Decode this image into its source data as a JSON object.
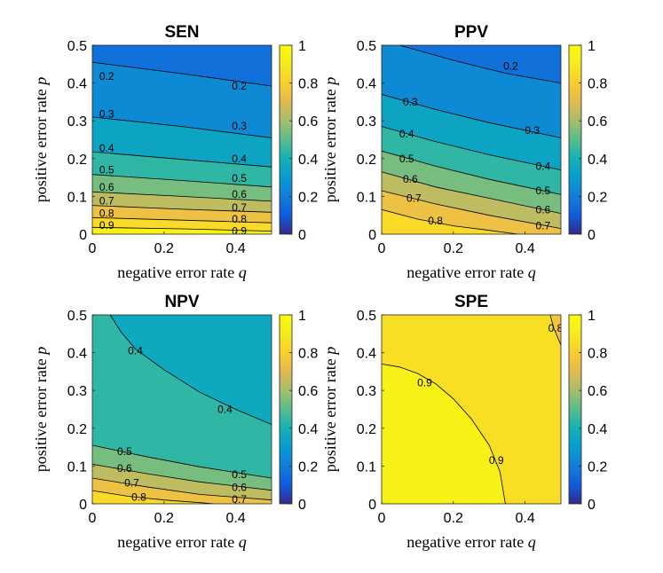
{
  "chart_data": [
    {
      "type": "heatmap",
      "subtype": "filled-contour",
      "title": "SEN",
      "xlabel": "negative error rate",
      "xlabel_var": "q",
      "ylabel": "positive error rate",
      "ylabel_var": "p",
      "xlim": [
        0,
        0.5
      ],
      "ylim": [
        0,
        0.5
      ],
      "xticks": [
        "0",
        "0.2",
        "0.4"
      ],
      "yticks": [
        "0",
        "0.1",
        "0.2",
        "0.3",
        "0.4",
        "0.5"
      ],
      "clim": [
        0,
        1
      ],
      "colorbar_ticks": [
        "0",
        "0.2",
        "0.4",
        "0.6",
        "0.8",
        "1"
      ],
      "contour_levels": [
        {
          "level": 0.9,
          "line": [
            [
              0,
              0.018
            ],
            [
              0.25,
              0.014
            ],
            [
              0.5,
              0.008
            ]
          ],
          "labels": [
            {
              "text": "0.9",
              "x": 0.04,
              "y": 0.023
            },
            {
              "text": "0.9",
              "x": 0.41,
              "y": 0.008
            }
          ]
        },
        {
          "level": 0.8,
          "line": [
            [
              0,
              0.044
            ],
            [
              0.25,
              0.037
            ],
            [
              0.5,
              0.03
            ]
          ],
          "labels": [
            {
              "text": "0.8",
              "x": 0.04,
              "y": 0.055
            },
            {
              "text": "0.8",
              "x": 0.41,
              "y": 0.04
            }
          ]
        },
        {
          "level": 0.7,
          "line": [
            [
              0,
              0.076
            ],
            [
              0.25,
              0.066
            ],
            [
              0.5,
              0.058
            ]
          ],
          "labels": [
            {
              "text": "0.7",
              "x": 0.04,
              "y": 0.088
            },
            {
              "text": "0.7",
              "x": 0.41,
              "y": 0.07
            }
          ]
        },
        {
          "level": 0.6,
          "line": [
            [
              0,
              0.112
            ],
            [
              0.25,
              0.1
            ],
            [
              0.5,
              0.087
            ]
          ],
          "labels": [
            {
              "text": "0.6",
              "x": 0.04,
              "y": 0.125
            },
            {
              "text": "0.6",
              "x": 0.41,
              "y": 0.106
            }
          ]
        },
        {
          "level": 0.5,
          "line": [
            [
              0,
              0.158
            ],
            [
              0.25,
              0.142
            ],
            [
              0.5,
              0.125
            ]
          ],
          "labels": [
            {
              "text": "0.5",
              "x": 0.04,
              "y": 0.17
            },
            {
              "text": "0.5",
              "x": 0.41,
              "y": 0.148
            }
          ]
        },
        {
          "level": 0.4,
          "line": [
            [
              0,
              0.218
            ],
            [
              0.25,
              0.198
            ],
            [
              0.5,
              0.178
            ]
          ],
          "labels": [
            {
              "text": "0.4",
              "x": 0.04,
              "y": 0.228
            },
            {
              "text": "0.4",
              "x": 0.41,
              "y": 0.2
            }
          ]
        },
        {
          "level": 0.3,
          "line": [
            [
              0,
              0.31
            ],
            [
              0.25,
              0.285
            ],
            [
              0.5,
              0.255
            ]
          ],
          "labels": [
            {
              "text": "0.3",
              "x": 0.04,
              "y": 0.318
            },
            {
              "text": "0.3",
              "x": 0.41,
              "y": 0.286
            }
          ]
        },
        {
          "level": 0.2,
          "line": [
            [
              0,
              0.455
            ],
            [
              0.25,
              0.425
            ],
            [
              0.5,
              0.392
            ]
          ],
          "labels": [
            {
              "text": "0.2",
              "x": 0.04,
              "y": 0.418
            },
            {
              "text": "0.2",
              "x": 0.41,
              "y": 0.392
            }
          ]
        }
      ]
    },
    {
      "type": "heatmap",
      "subtype": "filled-contour",
      "title": "PPV",
      "xlabel": "negative error rate",
      "xlabel_var": "q",
      "ylabel": "positive error rate",
      "ylabel_var": "p",
      "xlim": [
        0,
        0.5
      ],
      "ylim": [
        0,
        0.5
      ],
      "xticks": [
        "0",
        "0.2",
        "0.4"
      ],
      "yticks": [
        "0",
        "0.1",
        "0.2",
        "0.3",
        "0.4",
        "0.5"
      ],
      "clim": [
        0,
        1
      ],
      "colorbar_ticks": [
        "0",
        "0.2",
        "0.4",
        "0.6",
        "0.8",
        "1"
      ],
      "contour_levels": [
        {
          "level": 0.8,
          "line": [
            [
              0,
              0.065
            ],
            [
              0.1,
              0.04
            ],
            [
              0.2,
              0.022
            ],
            [
              0.3,
              0.01
            ],
            [
              0.38,
              0.0
            ]
          ],
          "labels": [
            {
              "text": "0.8",
              "x": 0.15,
              "y": 0.035
            }
          ]
        },
        {
          "level": 0.7,
          "line": [
            [
              0,
              0.115
            ],
            [
              0.15,
              0.08
            ],
            [
              0.3,
              0.05
            ],
            [
              0.5,
              0.015
            ]
          ],
          "labels": [
            {
              "text": "0.7",
              "x": 0.09,
              "y": 0.095
            },
            {
              "text": "0.7",
              "x": 0.45,
              "y": 0.022
            }
          ]
        },
        {
          "level": 0.6,
          "line": [
            [
              0,
              0.165
            ],
            [
              0.15,
              0.125
            ],
            [
              0.3,
              0.095
            ],
            [
              0.5,
              0.055
            ]
          ],
          "labels": [
            {
              "text": "0.6",
              "x": 0.08,
              "y": 0.145
            },
            {
              "text": "0.6",
              "x": 0.45,
              "y": 0.065
            }
          ]
        },
        {
          "level": 0.5,
          "line": [
            [
              0,
              0.22
            ],
            [
              0.15,
              0.18
            ],
            [
              0.3,
              0.145
            ],
            [
              0.5,
              0.105
            ]
          ],
          "labels": [
            {
              "text": "0.5",
              "x": 0.07,
              "y": 0.2
            },
            {
              "text": "0.5",
              "x": 0.45,
              "y": 0.115
            }
          ]
        },
        {
          "level": 0.4,
          "line": [
            [
              0,
              0.285
            ],
            [
              0.15,
              0.245
            ],
            [
              0.3,
              0.21
            ],
            [
              0.5,
              0.17
            ]
          ],
          "labels": [
            {
              "text": "0.4",
              "x": 0.07,
              "y": 0.265
            },
            {
              "text": "0.4",
              "x": 0.45,
              "y": 0.18
            }
          ]
        },
        {
          "level": 0.3,
          "line": [
            [
              0,
              0.37
            ],
            [
              0.15,
              0.33
            ],
            [
              0.3,
              0.295
            ],
            [
              0.5,
              0.255
            ]
          ],
          "labels": [
            {
              "text": "0.3",
              "x": 0.08,
              "y": 0.35
            },
            {
              "text": "0.3",
              "x": 0.42,
              "y": 0.275
            }
          ]
        },
        {
          "level": 0.2,
          "line": [
            [
              0.05,
              0.5
            ],
            [
              0.2,
              0.46
            ],
            [
              0.35,
              0.425
            ],
            [
              0.5,
              0.4
            ]
          ],
          "labels": [
            {
              "text": "0.2",
              "x": 0.36,
              "y": 0.445
            }
          ]
        }
      ]
    },
    {
      "type": "heatmap",
      "subtype": "filled-contour",
      "title": "NPV",
      "xlabel": "negative error rate",
      "xlabel_var": "q",
      "ylabel": "positive error rate",
      "ylabel_var": "p",
      "xlim": [
        0,
        0.5
      ],
      "ylim": [
        0,
        0.5
      ],
      "xticks": [
        "0",
        "0.2",
        "0.4"
      ],
      "yticks": [
        "0",
        "0.1",
        "0.2",
        "0.3",
        "0.4",
        "0.5"
      ],
      "clim": [
        0,
        1
      ],
      "colorbar_ticks": [
        "0",
        "0.2",
        "0.4",
        "0.6",
        "0.8",
        "1"
      ],
      "contour_levels": [
        {
          "level": 0.8,
          "line": [
            [
              0,
              0.035
            ],
            [
              0.1,
              0.02
            ],
            [
              0.2,
              0.01
            ],
            [
              0.3,
              0.003
            ],
            [
              0.34,
              0.0
            ]
          ],
          "labels": [
            {
              "text": "0.8",
              "x": 0.13,
              "y": 0.018
            }
          ]
        },
        {
          "level": 0.7,
          "line": [
            [
              0,
              0.068
            ],
            [
              0.15,
              0.045
            ],
            [
              0.3,
              0.025
            ],
            [
              0.5,
              0.01
            ]
          ],
          "labels": [
            {
              "text": "0.7",
              "x": 0.11,
              "y": 0.055
            },
            {
              "text": "0.7",
              "x": 0.41,
              "y": 0.012
            }
          ]
        },
        {
          "level": 0.6,
          "line": [
            [
              0,
              0.105
            ],
            [
              0.15,
              0.08
            ],
            [
              0.3,
              0.058
            ],
            [
              0.5,
              0.036
            ]
          ],
          "labels": [
            {
              "text": "0.6",
              "x": 0.09,
              "y": 0.094
            },
            {
              "text": "0.6",
              "x": 0.41,
              "y": 0.044
            }
          ]
        },
        {
          "level": 0.5,
          "line": [
            [
              0,
              0.155
            ],
            [
              0.15,
              0.125
            ],
            [
              0.3,
              0.098
            ],
            [
              0.5,
              0.068
            ]
          ],
          "labels": [
            {
              "text": "0.5",
              "x": 0.09,
              "y": 0.138
            },
            {
              "text": "0.5",
              "x": 0.41,
              "y": 0.078
            }
          ]
        },
        {
          "level": 0.4,
          "line": [
            [
              0.05,
              0.5
            ],
            [
              0.08,
              0.455
            ],
            [
              0.12,
              0.41
            ],
            [
              0.2,
              0.355
            ],
            [
              0.3,
              0.295
            ],
            [
              0.4,
              0.25
            ],
            [
              0.5,
              0.21
            ]
          ],
          "labels": [
            {
              "text": "0.4",
              "x": 0.12,
              "y": 0.405
            },
            {
              "text": "0.4",
              "x": 0.37,
              "y": 0.25
            }
          ]
        }
      ]
    },
    {
      "type": "heatmap",
      "subtype": "filled-contour",
      "title": "SPE",
      "xlabel": "negative error rate",
      "xlabel_var": "q",
      "ylabel": "positive error rate",
      "ylabel_var": "p",
      "xlim": [
        0,
        0.5
      ],
      "ylim": [
        0,
        0.5
      ],
      "xticks": [
        "0",
        "0.2",
        "0.4"
      ],
      "yticks": [
        "0",
        "0.1",
        "0.2",
        "0.3",
        "0.4",
        "0.5"
      ],
      "clim": [
        0,
        1
      ],
      "colorbar_ticks": [
        "0",
        "0.2",
        "0.4",
        "0.6",
        "0.8",
        "1"
      ],
      "contour_levels": [
        {
          "level": 0.9,
          "line": [
            [
              0,
              0.37
            ],
            [
              0.05,
              0.362
            ],
            [
              0.1,
              0.345
            ],
            [
              0.15,
              0.318
            ],
            [
              0.2,
              0.278
            ],
            [
              0.25,
              0.225
            ],
            [
              0.3,
              0.155
            ],
            [
              0.33,
              0.085
            ],
            [
              0.345,
              0.0
            ]
          ],
          "labels": [
            {
              "text": "0.9",
              "x": 0.12,
              "y": 0.32
            },
            {
              "text": "0.9",
              "x": 0.32,
              "y": 0.115
            }
          ]
        },
        {
          "level": 0.8,
          "line": [
            [
              0.47,
              0.5
            ],
            [
              0.48,
              0.465
            ],
            [
              0.5,
              0.42
            ]
          ],
          "labels": [
            {
              "text": "0.8",
              "x": 0.485,
              "y": 0.465
            }
          ]
        }
      ]
    }
  ]
}
